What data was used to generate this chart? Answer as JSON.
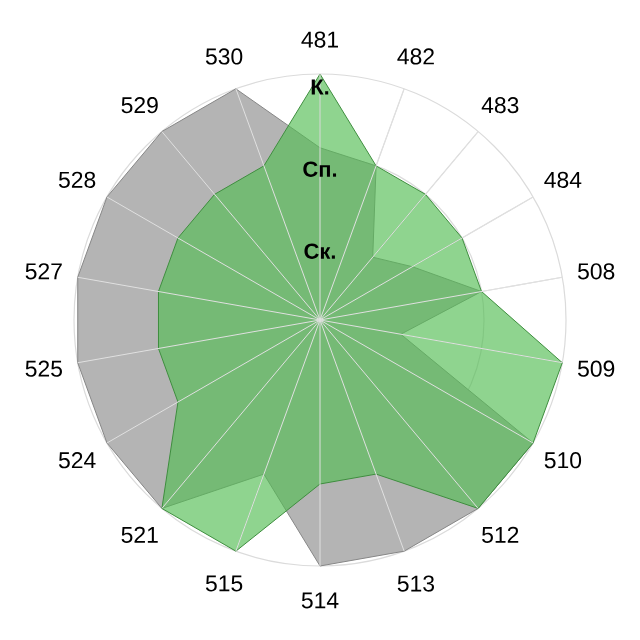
{
  "chart_data": {
    "type": "radar",
    "categories": [
      "481",
      "482",
      "483",
      "484",
      "508",
      "509",
      "510",
      "512",
      "513",
      "514",
      "515",
      "521",
      "524",
      "525",
      "527",
      "528",
      "529",
      "530"
    ],
    "ylim": [
      0,
      3
    ],
    "yticks": [
      {
        "value": 1,
        "label": "Ск."
      },
      {
        "value": 2,
        "label": "Сп."
      },
      {
        "value": 3,
        "label": "К."
      }
    ],
    "grid": true,
    "series": [
      {
        "color": "#b4b4b4",
        "values": [
          2.1,
          2,
          1,
          1.3,
          2,
          1,
          3,
          3,
          3,
          3,
          2,
          3,
          3,
          3,
          3,
          3,
          3,
          3
        ]
      },
      {
        "color": "#53bd53",
        "values": [
          3,
          2,
          2,
          2,
          2,
          3,
          3,
          3,
          2,
          2,
          3,
          3,
          2,
          2,
          2,
          2,
          2,
          2
        ]
      }
    ]
  }
}
